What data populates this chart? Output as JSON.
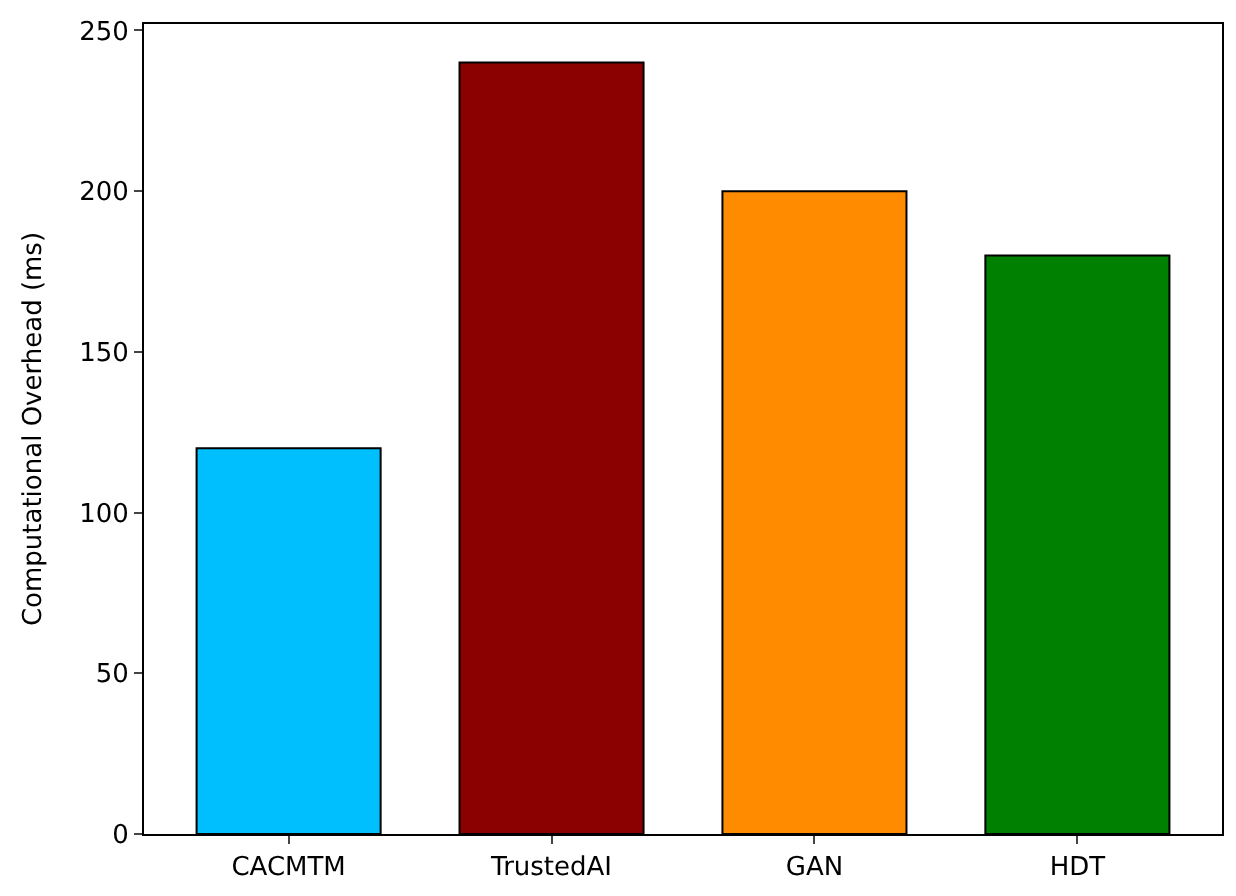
{
  "chart_data": {
    "type": "bar",
    "ylabel": "Computational Overhead (ms)",
    "categories": [
      "CACMTM",
      "TrustedAI",
      "GAN",
      "HDT"
    ],
    "values": [
      120,
      240,
      200,
      180
    ],
    "colors": [
      "#00bfff",
      "#8b0000",
      "#ff8c00",
      "#008000"
    ],
    "ylim": [
      0,
      252
    ],
    "yticks": [
      0,
      50,
      100,
      150,
      200,
      250
    ],
    "grid": false
  }
}
